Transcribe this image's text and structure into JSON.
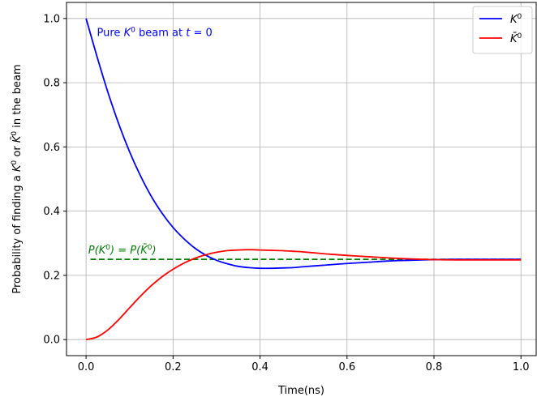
{
  "chart_data": {
    "type": "line",
    "title": "",
    "xlabel": "Time(ns)",
    "ylabel_parts": [
      "Probability of finding a ",
      "K",
      "0",
      " or ",
      "K̄",
      "0",
      " in the beam"
    ],
    "xlim": [
      -0.045,
      1.035
    ],
    "ylim": [
      -0.05,
      1.05
    ],
    "xticks": [
      0.0,
      0.2,
      0.4,
      0.6,
      0.8,
      1.0
    ],
    "xtick_labels": [
      "0.0",
      "0.2",
      "0.4",
      "0.6",
      "0.8",
      "1.0"
    ],
    "yticks": [
      0.0,
      0.2,
      0.4,
      0.6,
      0.8,
      1.0
    ],
    "ytick_labels": [
      "0.0",
      "0.2",
      "0.4",
      "0.6",
      "0.8",
      "1.0"
    ],
    "grid": true,
    "legend_position": "top-right",
    "series": [
      {
        "name": "K0",
        "legend_parts": [
          "K",
          "0"
        ],
        "color": "#0000ff",
        "x": [
          0.0,
          0.025,
          0.05,
          0.075,
          0.1,
          0.125,
          0.15,
          0.175,
          0.2,
          0.225,
          0.25,
          0.275,
          0.3,
          0.325,
          0.35,
          0.375,
          0.4,
          0.425,
          0.45,
          0.475,
          0.5,
          0.55,
          0.6,
          0.65,
          0.7,
          0.75,
          0.8,
          0.85,
          0.9,
          0.95,
          1.0
        ],
        "y": [
          1.0,
          0.882,
          0.771,
          0.672,
          0.585,
          0.51,
          0.446,
          0.393,
          0.349,
          0.314,
          0.285,
          0.263,
          0.247,
          0.236,
          0.228,
          0.224,
          0.222,
          0.222,
          0.223,
          0.224,
          0.227,
          0.232,
          0.237,
          0.241,
          0.245,
          0.247,
          0.249,
          0.25,
          0.25,
          0.25,
          0.25
        ]
      },
      {
        "name": "K̄0",
        "legend_parts": [
          "K̄",
          "0"
        ],
        "color": "#ff0000",
        "x": [
          0.0,
          0.025,
          0.05,
          0.075,
          0.1,
          0.125,
          0.15,
          0.175,
          0.2,
          0.225,
          0.25,
          0.275,
          0.3,
          0.325,
          0.35,
          0.375,
          0.4,
          0.425,
          0.45,
          0.475,
          0.5,
          0.55,
          0.6,
          0.65,
          0.7,
          0.75,
          0.8,
          0.85,
          0.9,
          0.95,
          1.0
        ],
        "y": [
          0.0,
          0.008,
          0.03,
          0.062,
          0.099,
          0.135,
          0.168,
          0.196,
          0.219,
          0.238,
          0.253,
          0.264,
          0.272,
          0.277,
          0.279,
          0.28,
          0.279,
          0.278,
          0.277,
          0.275,
          0.273,
          0.267,
          0.262,
          0.258,
          0.254,
          0.251,
          0.249,
          0.248,
          0.248,
          0.248,
          0.248
        ]
      }
    ],
    "reference_line": {
      "style": "dashed",
      "color": "#008000",
      "y": 0.25,
      "x_start": 0.01,
      "x_end": 1.0,
      "label_parts": [
        "P(",
        "K",
        "0",
        ") = P(",
        "K̄",
        "0",
        ")"
      ]
    },
    "annotation": {
      "parts": [
        "Pure ",
        "K",
        "0",
        " beam at ",
        "t",
        " = 0"
      ],
      "color": "#0000ff",
      "x": 0.025,
      "y": 0.955
    }
  }
}
